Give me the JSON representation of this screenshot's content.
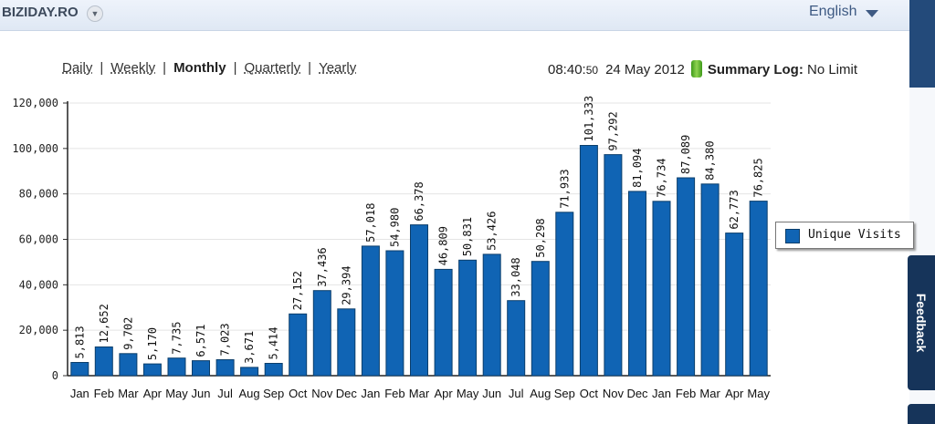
{
  "header": {
    "site_title": "BIZIDAY.RO",
    "site_dropdown_icon": "chevron-down-icon",
    "language": "English",
    "language_icon": "caret-down-icon"
  },
  "period_tabs": [
    {
      "label": "Daily",
      "active": false
    },
    {
      "label": "Weekly",
      "active": false
    },
    {
      "label": "Monthly",
      "active": true
    },
    {
      "label": "Quarterly",
      "active": false
    },
    {
      "label": "Yearly",
      "active": false
    }
  ],
  "status": {
    "time_hm": "08:40:",
    "time_s": "50",
    "date": "24 May 2012",
    "battery_icon": "battery-icon",
    "summary_label": "Summary Log:",
    "summary_value": "No Limit"
  },
  "sidebar": {
    "feedback_label": "Feedback"
  },
  "colors": {
    "bar": "#1064b4",
    "bar_border": "#0b3e6b",
    "accent": "#16345a"
  },
  "chart_data": {
    "type": "bar",
    "categories": [
      "Jan",
      "Feb",
      "Mar",
      "Apr",
      "May",
      "Jun",
      "Jul",
      "Aug",
      "Sep",
      "Oct",
      "Nov",
      "Dec",
      "Jan",
      "Feb",
      "Mar",
      "Apr",
      "May",
      "Jun",
      "Jul",
      "Aug",
      "Sep",
      "Oct",
      "Nov",
      "Dec",
      "Jan",
      "Feb",
      "Mar",
      "Apr",
      "May"
    ],
    "series": [
      {
        "name": "Unique Visits",
        "values": [
          5813,
          12652,
          9702,
          5170,
          7735,
          6571,
          7023,
          3671,
          5414,
          27152,
          37436,
          29394,
          57018,
          54980,
          66378,
          46809,
          50831,
          53426,
          33048,
          50298,
          71933,
          101333,
          97292,
          81094,
          76734,
          87089,
          84380,
          62773,
          76825
        ],
        "labels": [
          "5,813",
          "12,652",
          "9,702",
          "5,170",
          "7,735",
          "6,571",
          "7,023",
          "3,671",
          "5,414",
          "27,152",
          "37,436",
          "29,394",
          "57,018",
          "54,980",
          "66,378",
          "46,809",
          "50,831",
          "53,426",
          "33,048",
          "50,298",
          "71,933",
          "101,333",
          "97,292",
          "81,094",
          "76,734",
          "87,089",
          "84,380",
          "62,773",
          "76,825"
        ]
      }
    ],
    "y_ticks": [
      0,
      20000,
      40000,
      60000,
      80000,
      100000,
      120000
    ],
    "y_tick_labels": [
      "0",
      "20,000",
      "40,000",
      "60,000",
      "80,000",
      "100,000",
      "120,000"
    ],
    "ylim": [
      0,
      120000
    ],
    "grid": true,
    "legend_position": "right"
  }
}
